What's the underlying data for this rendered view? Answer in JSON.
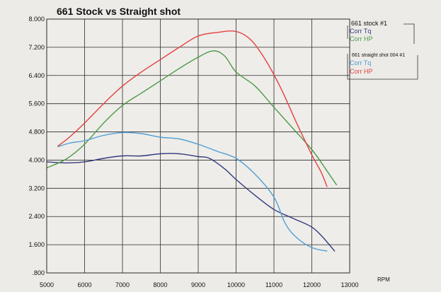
{
  "chart_data": {
    "type": "line",
    "title": "661 Stock vs Straight shot",
    "xlabel": "RPM",
    "ylabel": "",
    "xlim": [
      5000,
      13000
    ],
    "ylim": [
      0.8,
      8.0
    ],
    "x_ticks": [
      "5000",
      "6000",
      "7000",
      "8000",
      "9000",
      "10000",
      "11000",
      "12000",
      "13000"
    ],
    "y_ticks": [
      ".800",
      "1.600",
      "2.400",
      "3.200",
      "4.000",
      "4.800",
      "5.600",
      "6.400",
      "7.200",
      "8.000"
    ],
    "legend": {
      "groups": [
        {
          "heading": "661 stock   #1",
          "entries": [
            "Corr Tq",
            "Corr HP"
          ]
        },
        {
          "heading": "661 straight shot 004   #1",
          "entries": [
            "Corr Tq",
            "Corr HP"
          ]
        }
      ]
    },
    "series": [
      {
        "name": "661 stock Corr Tq",
        "color": "#333a7e",
        "points": [
          [
            5000,
            3.95
          ],
          [
            5500,
            3.92
          ],
          [
            6000,
            3.95
          ],
          [
            6500,
            4.05
          ],
          [
            7000,
            4.12
          ],
          [
            7500,
            4.12
          ],
          [
            8000,
            4.18
          ],
          [
            8500,
            4.18
          ],
          [
            9000,
            4.1
          ],
          [
            9300,
            4.05
          ],
          [
            9700,
            3.75
          ],
          [
            10000,
            3.45
          ],
          [
            10500,
            3.0
          ],
          [
            11000,
            2.6
          ],
          [
            11500,
            2.35
          ],
          [
            12000,
            2.1
          ],
          [
            12300,
            1.8
          ],
          [
            12600,
            1.42
          ]
        ]
      },
      {
        "name": "661 stock Corr HP",
        "color": "#4e9a48",
        "points": [
          [
            5000,
            3.78
          ],
          [
            5500,
            4.02
          ],
          [
            6000,
            4.45
          ],
          [
            6500,
            5.05
          ],
          [
            7000,
            5.55
          ],
          [
            7500,
            5.9
          ],
          [
            8000,
            6.25
          ],
          [
            8500,
            6.6
          ],
          [
            9000,
            6.92
          ],
          [
            9400,
            7.1
          ],
          [
            9700,
            6.95
          ],
          [
            10000,
            6.5
          ],
          [
            10500,
            6.1
          ],
          [
            11000,
            5.5
          ],
          [
            11500,
            4.9
          ],
          [
            12000,
            4.3
          ],
          [
            12300,
            3.85
          ],
          [
            12650,
            3.3
          ]
        ]
      },
      {
        "name": "661 straight shot 004 Corr Tq",
        "color": "#4f9fd6",
        "points": [
          [
            5300,
            4.38
          ],
          [
            5600,
            4.48
          ],
          [
            6000,
            4.55
          ],
          [
            6500,
            4.7
          ],
          [
            7000,
            4.78
          ],
          [
            7500,
            4.75
          ],
          [
            8000,
            4.65
          ],
          [
            8500,
            4.6
          ],
          [
            9000,
            4.45
          ],
          [
            9500,
            4.25
          ],
          [
            10000,
            4.05
          ],
          [
            10500,
            3.6
          ],
          [
            11000,
            2.95
          ],
          [
            11300,
            2.2
          ],
          [
            11600,
            1.8
          ],
          [
            12000,
            1.52
          ],
          [
            12400,
            1.42
          ]
        ]
      },
      {
        "name": "661 straight shot 004 Corr HP",
        "color": "#e3403f",
        "points": [
          [
            5300,
            4.4
          ],
          [
            5600,
            4.65
          ],
          [
            6000,
            5.05
          ],
          [
            6500,
            5.6
          ],
          [
            7000,
            6.1
          ],
          [
            7500,
            6.5
          ],
          [
            8000,
            6.85
          ],
          [
            8500,
            7.2
          ],
          [
            9000,
            7.52
          ],
          [
            9500,
            7.62
          ],
          [
            10000,
            7.65
          ],
          [
            10400,
            7.4
          ],
          [
            10800,
            6.8
          ],
          [
            11200,
            6.0
          ],
          [
            11600,
            5.05
          ],
          [
            12000,
            4.15
          ],
          [
            12250,
            3.65
          ],
          [
            12400,
            3.25
          ]
        ]
      }
    ]
  },
  "legend_colors": {
    "stock_tq": "#333a7e",
    "stock_hp": "#4e9a48",
    "shot_tq": "#4f9fd6",
    "shot_hp": "#e3403f",
    "heading": "#111111"
  }
}
